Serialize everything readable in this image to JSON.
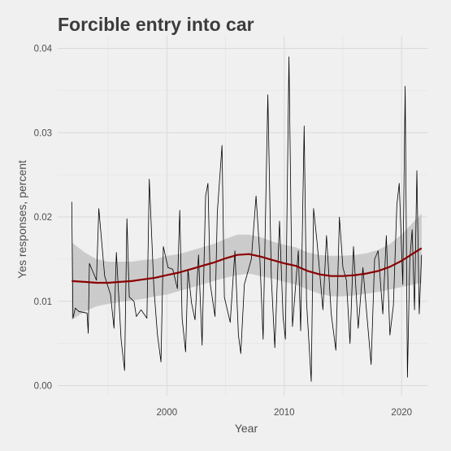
{
  "chart_data": {
    "type": "line",
    "title": "Forcible entry into car",
    "xlabel": "Year",
    "ylabel": "Yes responses, percent",
    "xlim": [
      1990.7,
      2022.2
    ],
    "ylim": [
      -0.0012,
      0.0415
    ],
    "x_ticks": [
      2000,
      2010,
      2020
    ],
    "y_ticks": [
      0.0,
      0.01,
      0.02,
      0.03,
      0.04
    ],
    "y_tick_labels": [
      "0.00",
      "0.01",
      "0.02",
      "0.03",
      "0.04"
    ],
    "grid": true,
    "colors": {
      "background": "#f0f0f0",
      "grid": "#d9d9d9",
      "raw": "#000000",
      "smooth": "#8b0000",
      "band": "#c4c4c4"
    },
    "series": [
      {
        "kind": "raw",
        "points": [
          [
            1991.9,
            0.0218
          ],
          [
            1992.0,
            0.008
          ],
          [
            1992.2,
            0.0092
          ],
          [
            1992.5,
            0.0088
          ],
          [
            1993.2,
            0.0086
          ],
          [
            1993.3,
            0.0062
          ],
          [
            1993.4,
            0.0145
          ],
          [
            1994.0,
            0.0125
          ],
          [
            1994.2,
            0.021
          ],
          [
            1994.7,
            0.013
          ],
          [
            1995.2,
            0.0108
          ],
          [
            1995.5,
            0.0068
          ],
          [
            1995.7,
            0.0158
          ],
          [
            1996.1,
            0.0055
          ],
          [
            1996.4,
            0.0018
          ],
          [
            1996.6,
            0.0198
          ],
          [
            1996.8,
            0.0105
          ],
          [
            1997.2,
            0.01
          ],
          [
            1997.4,
            0.0082
          ],
          [
            1997.8,
            0.009
          ],
          [
            1998.3,
            0.008
          ],
          [
            1998.5,
            0.0245
          ],
          [
            1998.9,
            0.0115
          ],
          [
            1999.2,
            0.006
          ],
          [
            1999.5,
            0.0028
          ],
          [
            1999.7,
            0.0165
          ],
          [
            2000.1,
            0.014
          ],
          [
            2000.5,
            0.0138
          ],
          [
            2000.9,
            0.0115
          ],
          [
            2001.1,
            0.0208
          ],
          [
            2001.3,
            0.008
          ],
          [
            2001.6,
            0.004
          ],
          [
            2001.8,
            0.0138
          ],
          [
            2002.1,
            0.0098
          ],
          [
            2002.4,
            0.0078
          ],
          [
            2002.7,
            0.0155
          ],
          [
            2003.0,
            0.0048
          ],
          [
            2003.3,
            0.0225
          ],
          [
            2003.5,
            0.024
          ],
          [
            2003.7,
            0.012
          ],
          [
            2004.1,
            0.0082
          ],
          [
            2004.3,
            0.0205
          ],
          [
            2004.7,
            0.0285
          ],
          [
            2004.9,
            0.0105
          ],
          [
            2005.4,
            0.0075
          ],
          [
            2005.8,
            0.016
          ],
          [
            2006.1,
            0.006
          ],
          [
            2006.3,
            0.0038
          ],
          [
            2006.6,
            0.012
          ],
          [
            2007.2,
            0.015
          ],
          [
            2007.6,
            0.0225
          ],
          [
            2007.9,
            0.016
          ],
          [
            2008.2,
            0.0055
          ],
          [
            2008.6,
            0.0345
          ],
          [
            2008.9,
            0.0128
          ],
          [
            2009.2,
            0.0045
          ],
          [
            2009.6,
            0.0195
          ],
          [
            2009.9,
            0.0082
          ],
          [
            2010.1,
            0.0055
          ],
          [
            2010.4,
            0.039
          ],
          [
            2010.7,
            0.007
          ],
          [
            2011.2,
            0.016
          ],
          [
            2011.4,
            0.0065
          ],
          [
            2011.7,
            0.0308
          ],
          [
            2011.9,
            0.01
          ],
          [
            2012.3,
            0.0005
          ],
          [
            2012.5,
            0.021
          ],
          [
            2012.8,
            0.017
          ],
          [
            2013.3,
            0.009
          ],
          [
            2013.6,
            0.0178
          ],
          [
            2014.0,
            0.0085
          ],
          [
            2014.4,
            0.0042
          ],
          [
            2014.7,
            0.02
          ],
          [
            2015.0,
            0.014
          ],
          [
            2015.3,
            0.0125
          ],
          [
            2015.6,
            0.005
          ],
          [
            2015.9,
            0.0165
          ],
          [
            2016.3,
            0.0068
          ],
          [
            2016.7,
            0.014
          ],
          [
            2017.0,
            0.009
          ],
          [
            2017.4,
            0.0025
          ],
          [
            2017.7,
            0.015
          ],
          [
            2018.0,
            0.016
          ],
          [
            2018.4,
            0.0085
          ],
          [
            2018.7,
            0.0178
          ],
          [
            2019.0,
            0.006
          ],
          [
            2019.3,
            0.0095
          ],
          [
            2019.6,
            0.0215
          ],
          [
            2019.8,
            0.024
          ],
          [
            2020.1,
            0.012
          ],
          [
            2020.3,
            0.0355
          ],
          [
            2020.5,
            0.001
          ],
          [
            2020.7,
            0.015
          ],
          [
            2020.9,
            0.0185
          ],
          [
            2021.1,
            0.009
          ],
          [
            2021.3,
            0.0255
          ],
          [
            2021.5,
            0.0085
          ],
          [
            2021.7,
            0.0155
          ]
        ]
      },
      {
        "kind": "smooth",
        "x": [
          1991.9,
          1993,
          1994,
          1995,
          1996,
          1997,
          1998,
          1999,
          2000,
          2001,
          2002,
          2003,
          2004,
          2005,
          2006,
          2007,
          2008,
          2009,
          2010,
          2011,
          2012,
          2013,
          2014,
          2015,
          2016,
          2017,
          2018,
          2019,
          2020,
          2021,
          2021.7
        ],
        "y": [
          0.0124,
          0.0123,
          0.0122,
          0.0122,
          0.0123,
          0.0124,
          0.0126,
          0.0128,
          0.0131,
          0.0134,
          0.0138,
          0.0142,
          0.0146,
          0.0151,
          0.0155,
          0.0156,
          0.0153,
          0.0149,
          0.0145,
          0.0142,
          0.0136,
          0.0132,
          0.013,
          0.013,
          0.0131,
          0.0133,
          0.0136,
          0.0141,
          0.0148,
          0.0157,
          0.0163
        ],
        "lower": [
          0.0078,
          0.0088,
          0.0094,
          0.0097,
          0.0099,
          0.0101,
          0.0103,
          0.0106,
          0.0108,
          0.0112,
          0.0116,
          0.012,
          0.0124,
          0.0128,
          0.0131,
          0.0133,
          0.013,
          0.0127,
          0.0123,
          0.012,
          0.0114,
          0.0109,
          0.0106,
          0.0106,
          0.0107,
          0.0109,
          0.0111,
          0.0114,
          0.0117,
          0.012,
          0.0122
        ],
        "upper": [
          0.017,
          0.0158,
          0.015,
          0.0147,
          0.0147,
          0.0147,
          0.0149,
          0.015,
          0.0154,
          0.0156,
          0.016,
          0.0164,
          0.0168,
          0.0174,
          0.0179,
          0.0179,
          0.0176,
          0.0171,
          0.0167,
          0.0164,
          0.0158,
          0.0155,
          0.0154,
          0.0154,
          0.0155,
          0.0157,
          0.0161,
          0.0168,
          0.0179,
          0.0194,
          0.0204
        ]
      }
    ]
  }
}
